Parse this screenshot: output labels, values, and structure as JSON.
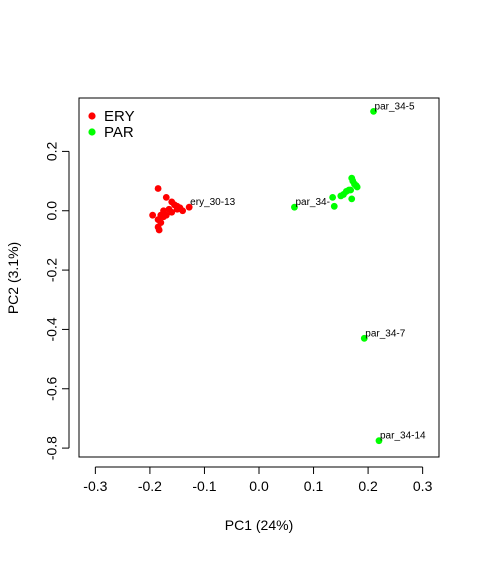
{
  "chart_data": {
    "type": "scatter",
    "xlabel": "PC1 (24%)",
    "ylabel": "PC2 (3.1%)",
    "xlim": [
      -0.33,
      0.33
    ],
    "ylim": [
      -0.83,
      0.38
    ],
    "xticks": [
      -0.3,
      -0.2,
      -0.1,
      0.0,
      0.1,
      0.2,
      0.3
    ],
    "xtick_labels": [
      "-0.3",
      "-0.2",
      "-0.1",
      "0.0",
      "0.1",
      "0.2",
      "0.3"
    ],
    "yticks": [
      0.2,
      0.0,
      -0.2,
      -0.4,
      -0.6,
      -0.8
    ],
    "ytick_labels": [
      "0.2",
      "0.0",
      "-0.2",
      "-0.4",
      "-0.6",
      "-0.8"
    ],
    "grid": false,
    "legend_position": "top-left",
    "series": [
      {
        "name": "ERY",
        "color": "#ff0000",
        "points": [
          [
            -0.185,
            0.075
          ],
          [
            -0.17,
            0.045
          ],
          [
            -0.16,
            0.03
          ],
          [
            -0.155,
            0.02
          ],
          [
            -0.15,
            0.015
          ],
          [
            -0.145,
            0.01
          ],
          [
            -0.165,
            0.005
          ],
          [
            -0.175,
            0.0
          ],
          [
            -0.14,
            0.0
          ],
          [
            -0.195,
            -0.015
          ],
          [
            -0.18,
            -0.015
          ],
          [
            -0.175,
            -0.02
          ],
          [
            -0.185,
            -0.03
          ],
          [
            -0.18,
            -0.04
          ],
          [
            -0.185,
            -0.055
          ],
          [
            -0.183,
            -0.065
          ],
          [
            -0.16,
            -0.005
          ],
          [
            -0.17,
            -0.015
          ],
          [
            -0.15,
            0.005
          ],
          [
            -0.128,
            0.012
          ]
        ]
      },
      {
        "name": "PAR",
        "color": "#00ff00",
        "points": [
          [
            0.21,
            0.335
          ],
          [
            0.065,
            0.012
          ],
          [
            0.135,
            0.045
          ],
          [
            0.138,
            0.015
          ],
          [
            0.15,
            0.05
          ],
          [
            0.155,
            0.055
          ],
          [
            0.16,
            0.065
          ],
          [
            0.165,
            0.07
          ],
          [
            0.17,
            0.11
          ],
          [
            0.172,
            0.1
          ],
          [
            0.175,
            0.09
          ],
          [
            0.178,
            0.085
          ],
          [
            0.18,
            0.08
          ],
          [
            0.168,
            0.07
          ],
          [
            0.17,
            0.04
          ],
          [
            0.193,
            -0.43
          ],
          [
            0.22,
            -0.775
          ]
        ]
      }
    ],
    "annotations": [
      {
        "text": "ery_30-13",
        "x": -0.128,
        "y": 0.012
      },
      {
        "text": "par_34-5",
        "x": 0.21,
        "y": 0.335
      },
      {
        "text": "par_34-",
        "x": 0.065,
        "y": 0.012
      },
      {
        "text": "par_34-7",
        "x": 0.193,
        "y": -0.43
      },
      {
        "text": "par_34-14",
        "x": 0.22,
        "y": -0.775
      }
    ]
  }
}
